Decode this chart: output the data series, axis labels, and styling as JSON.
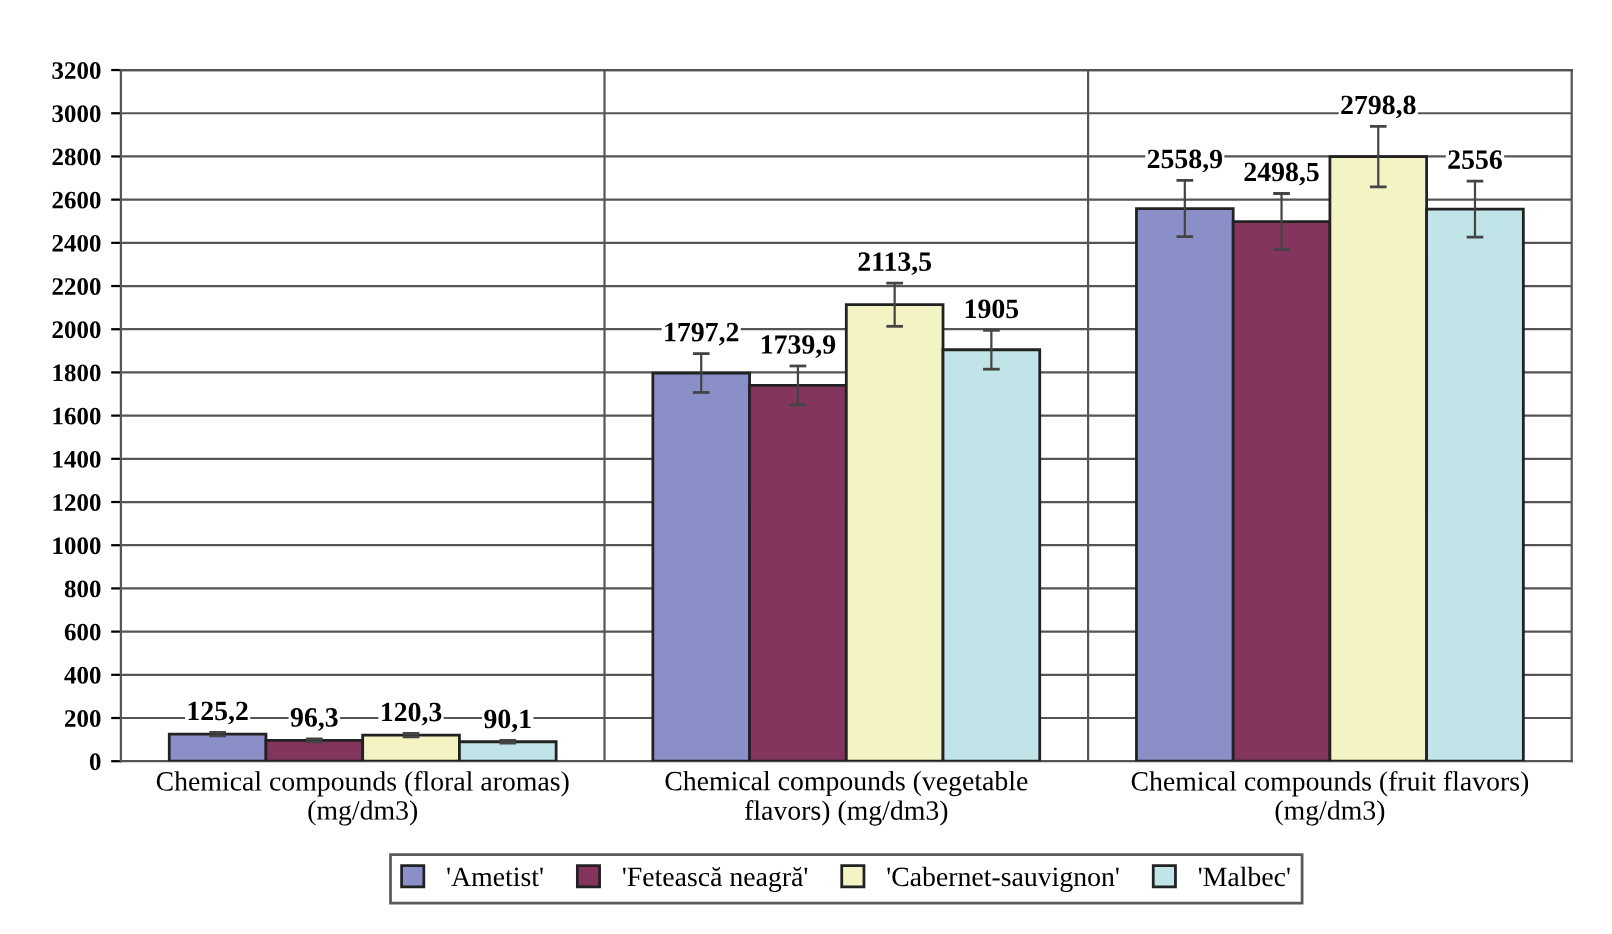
{
  "chart_data": {
    "type": "bar",
    "categories": [
      "Chemical compounds (floral aromas)\n(mg/dm3)",
      "Chemical compounds (vegetable\nflavors) (mg/dm3)",
      "Chemical compounds (fruit flavors)\n(mg/dm3)"
    ],
    "series": [
      {
        "name": "'Ametist'",
        "color": "#8b8fc8",
        "values": [
          125.2,
          1797.2,
          2558.9
        ],
        "errors": [
          8,
          90,
          130
        ],
        "value_labels": [
          "125,2",
          "1797,2",
          "2558,9"
        ]
      },
      {
        "name": "'Fetească neagră'",
        "color": "#83355e",
        "values": [
          96.3,
          1739.9,
          2498.5
        ],
        "errors": [
          7,
          90,
          130
        ],
        "value_labels": [
          "96,3",
          "1739,9",
          "2498,5"
        ]
      },
      {
        "name": "'Cabernet-sauvignon'",
        "color": "#f3f3c3",
        "values": [
          120.3,
          2113.5,
          2798.8
        ],
        "errors": [
          8,
          100,
          140
        ],
        "value_labels": [
          "120,3",
          "2113,5",
          "2798,8"
        ]
      },
      {
        "name": "'Malbec'",
        "color": "#c0e4e8",
        "values": [
          90.1,
          1905,
          2556
        ],
        "errors": [
          6,
          90,
          130
        ],
        "value_labels": [
          "90,1",
          "1905",
          "2556"
        ]
      }
    ],
    "ylim": [
      0,
      3200
    ],
    "yticks": [
      0,
      200,
      400,
      600,
      800,
      1000,
      1200,
      1400,
      1600,
      1800,
      2000,
      2200,
      2400,
      2600,
      2800,
      3000,
      3200
    ],
    "grid": true,
    "legend": "bottom"
  }
}
